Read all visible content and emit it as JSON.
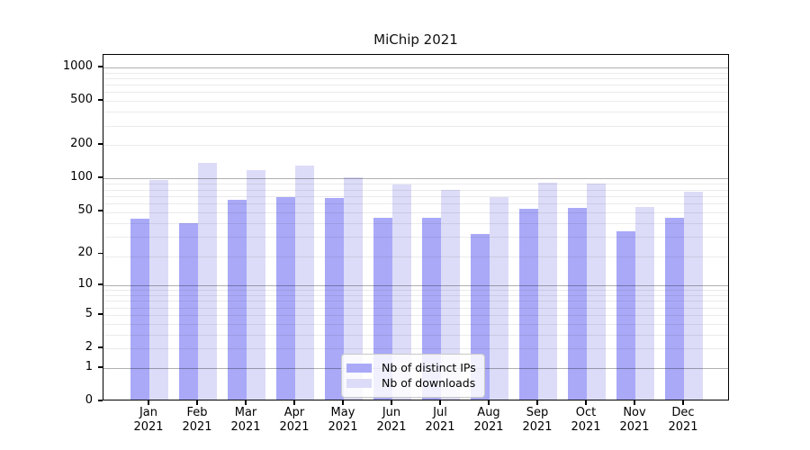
{
  "title": "MiChip 2021",
  "chart_data": {
    "type": "bar",
    "title": "MiChip 2021",
    "categories": [
      "Jan 2021",
      "Feb 2021",
      "Mar 2021",
      "Apr 2021",
      "May 2021",
      "Jun 2021",
      "Jul 2021",
      "Aug 2021",
      "Sep 2021",
      "Oct 2021",
      "Nov 2021",
      "Dec 2021"
    ],
    "x_tick_line1": [
      "Jan",
      "Feb",
      "Mar",
      "Apr",
      "May",
      "Jun",
      "Jul",
      "Aug",
      "Sep",
      "Oct",
      "Nov",
      "Dec"
    ],
    "x_tick_line2": "2021",
    "series": [
      {
        "name": "Nb of distinct IPs",
        "color": "#a9a9f8",
        "values": [
          43,
          39,
          64,
          68,
          66,
          44,
          44,
          31,
          53,
          54,
          33,
          44
        ]
      },
      {
        "name": "Nb of downloads",
        "color": "#dcdcf8",
        "values": [
          97,
          137,
          118,
          130,
          102,
          88,
          78,
          67,
          92,
          89,
          55,
          76
        ]
      }
    ],
    "y_scale": "log1p",
    "y_ticks": [
      0,
      1,
      2,
      5,
      10,
      20,
      50,
      100,
      200,
      500,
      1000
    ],
    "y_tick_labels": [
      "0",
      "1",
      "2",
      "5",
      "10",
      "20",
      "50",
      "100",
      "200",
      "500",
      "1000"
    ],
    "ylim": [
      0,
      1300
    ],
    "xlabel": "",
    "ylabel": "",
    "grid": "both",
    "legend_position": "lower center",
    "colors": {
      "major_grid": "#b0b0b0",
      "minor_grid": "#ebebeb",
      "axis": "#000000",
      "background": "#ffffff"
    }
  }
}
